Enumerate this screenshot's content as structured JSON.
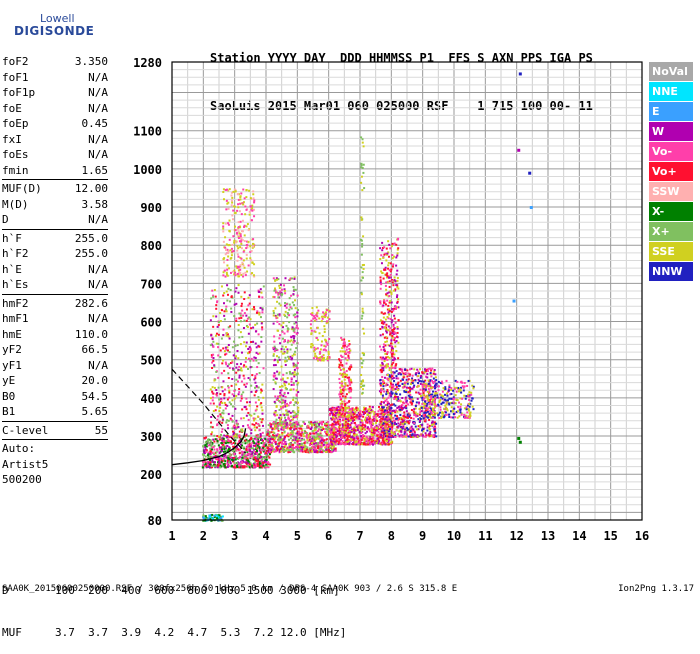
{
  "logo": {
    "top": "Lowell",
    "bottom": "DIGISONDE"
  },
  "header": {
    "line1": "Station YYYY DAY  DDD HHMMSS P1  FFS S AXN PPS IGA PS",
    "line2": "SaoLuis 2015 Mar01 060 025000 RSF    1 715 100 00- 11"
  },
  "params": [
    {
      "k": "foF2",
      "v": "3.350"
    },
    {
      "k": "foF1",
      "v": "N/A"
    },
    {
      "k": "foF1p",
      "v": "N/A"
    },
    {
      "k": "foE",
      "v": "N/A"
    },
    {
      "k": "foEp",
      "v": "0.45"
    },
    {
      "k": "fxI",
      "v": "N/A"
    },
    {
      "k": "foEs",
      "v": "N/A"
    },
    {
      "k": "fmin",
      "v": "1.65"
    },
    {
      "sep": true
    },
    {
      "k": "MUF(D)",
      "v": "12.00"
    },
    {
      "k": "M(D)",
      "v": "3.58"
    },
    {
      "k": "D",
      "v": "N/A"
    },
    {
      "sep": true
    },
    {
      "k": "h`F",
      "v": "255.0"
    },
    {
      "k": "h`F2",
      "v": "255.0"
    },
    {
      "k": "h`E",
      "v": "N/A"
    },
    {
      "k": "h`Es",
      "v": "N/A"
    },
    {
      "sep": true
    },
    {
      "k": "hmF2",
      "v": "282.6"
    },
    {
      "k": "hmF1",
      "v": "N/A"
    },
    {
      "k": "hmE",
      "v": "110.0"
    },
    {
      "k": "yF2",
      "v": "66.5"
    },
    {
      "k": "yF1",
      "v": "N/A"
    },
    {
      "k": "yE",
      "v": "20.0"
    },
    {
      "k": "B0",
      "v": "54.5"
    },
    {
      "k": "B1",
      "v": "5.65"
    },
    {
      "sep": true
    },
    {
      "k": "C-level",
      "v": "55"
    },
    {
      "sep": true
    },
    {
      "text": "Auto:"
    },
    {
      "text": "Artist5"
    },
    {
      "text": "500200"
    }
  ],
  "legend": [
    {
      "label": "NoVal",
      "color": "#a8a8a8"
    },
    {
      "label": "NNE",
      "color": "#00e5ff"
    },
    {
      "label": "E",
      "color": "#3aa0ff"
    },
    {
      "label": "W",
      "color": "#b000b0"
    },
    {
      "label": "Vo-",
      "color": "#ff3faa"
    },
    {
      "label": "Vo+",
      "color": "#ff1030"
    },
    {
      "label": "SSW",
      "color": "#ffb0b0"
    },
    {
      "label": "X-",
      "color": "#008000"
    },
    {
      "label": "X+",
      "color": "#80c060"
    },
    {
      "label": "SSE",
      "color": "#d0d020"
    },
    {
      "label": "NNW",
      "color": "#2020c0"
    }
  ],
  "chart_data": {
    "type": "scatter",
    "xlabel": "",
    "ylabel": "",
    "xlim": [
      1,
      16
    ],
    "ylim": [
      80,
      1280
    ],
    "x_ticks": [
      1,
      2,
      3,
      4,
      5,
      6,
      7,
      8,
      9,
      10,
      11,
      12,
      13,
      14,
      15,
      16
    ],
    "y_ticks": [
      80,
      200,
      300,
      400,
      500,
      600,
      700,
      800,
      900,
      1000,
      1100,
      1280
    ],
    "grid": true,
    "dist_table": {
      "row1_label": "D",
      "distances_km": [
        "100",
        "200",
        "400",
        "600",
        "800",
        "1000",
        "1500",
        "3000"
      ],
      "unit1": "[km]",
      "row2_label": "MUF",
      "muf_mhz": [
        "3.7",
        "3.7",
        "3.9",
        "4.2",
        "4.7",
        "5.3",
        "7.2",
        "12.0"
      ],
      "unit2": "[MHz]"
    },
    "trace_solid": [
      [
        1.0,
        225
      ],
      [
        1.5,
        230
      ],
      [
        2.0,
        236
      ],
      [
        2.5,
        246
      ],
      [
        2.8,
        258
      ],
      [
        3.0,
        270
      ],
      [
        3.2,
        285
      ],
      [
        3.3,
        300
      ],
      [
        3.35,
        320
      ]
    ],
    "trace_dashed": [
      [
        1.0,
        475
      ],
      [
        1.5,
        430
      ],
      [
        2.0,
        385
      ],
      [
        2.5,
        335
      ],
      [
        2.9,
        295
      ],
      [
        3.2,
        270
      ],
      [
        3.35,
        255
      ]
    ],
    "dot_clusters": [
      {
        "x": [
          1.95,
          4.1
        ],
        "y": [
          220,
          300
        ],
        "n": 700,
        "colors": [
          "#008000",
          "#80c060",
          "#ff3faa",
          "#ff1030",
          "#b000b0"
        ]
      },
      {
        "x": [
          4.0,
          6.2
        ],
        "y": [
          260,
          340
        ],
        "n": 700,
        "colors": [
          "#ff3faa",
          "#ff1030",
          "#b000b0",
          "#d0d020",
          "#80c060"
        ]
      },
      {
        "x": [
          6.0,
          8.0
        ],
        "y": [
          280,
          380
        ],
        "n": 900,
        "colors": [
          "#ff1030",
          "#ff3faa",
          "#b000b0",
          "#d0d020"
        ]
      },
      {
        "x": [
          7.6,
          9.4
        ],
        "y": [
          300,
          480
        ],
        "n": 800,
        "colors": [
          "#d0d020",
          "#ff1030",
          "#b000b0",
          "#ff3faa",
          "#2020c0"
        ]
      },
      {
        "x": [
          9.0,
          10.6
        ],
        "y": [
          350,
          450
        ],
        "n": 300,
        "colors": [
          "#d0d020",
          "#ff3faa",
          "#2020c0"
        ]
      },
      {
        "x": [
          2.2,
          3.9
        ],
        "y": [
          300,
          700
        ],
        "n": 500,
        "colors": [
          "#b000b0",
          "#ff3faa",
          "#d0d020",
          "#ff1030",
          "#80c060"
        ]
      },
      {
        "x": [
          2.6,
          3.6
        ],
        "y": [
          720,
          950
        ],
        "n": 250,
        "colors": [
          "#d0d020",
          "#ffb0b0",
          "#ff3faa"
        ]
      },
      {
        "x": [
          4.2,
          5.0
        ],
        "y": [
          330,
          720
        ],
        "n": 400,
        "colors": [
          "#ff3faa",
          "#b000b0",
          "#d0d020",
          "#80c060"
        ]
      },
      {
        "x": [
          5.4,
          6.0
        ],
        "y": [
          500,
          640
        ],
        "n": 120,
        "colors": [
          "#d0d020",
          "#ff3faa"
        ]
      },
      {
        "x": [
          6.3,
          6.7
        ],
        "y": [
          350,
          560
        ],
        "n": 200,
        "colors": [
          "#ff1030",
          "#ff3faa",
          "#d0d020"
        ]
      },
      {
        "x": [
          7.6,
          8.2
        ],
        "y": [
          480,
          820
        ],
        "n": 300,
        "colors": [
          "#d0d020",
          "#ff1030",
          "#b000b0",
          "#ff3faa"
        ]
      },
      {
        "x": [
          1.95,
          2.6
        ],
        "y": [
          80,
          96
        ],
        "n": 80,
        "colors": [
          "#008000",
          "#80c060",
          "#00e5ff",
          "#3aa0ff"
        ]
      },
      {
        "x": [
          7.0,
          7.1
        ],
        "y": [
          400,
          1100
        ],
        "n": 60,
        "colors": [
          "#80c060",
          "#d0d020"
        ]
      }
    ],
    "isolated_points": [
      {
        "x": 12.1,
        "y": 1250,
        "color": "#2020c0"
      },
      {
        "x": 12.05,
        "y": 1050,
        "color": "#b000b0"
      },
      {
        "x": 12.4,
        "y": 990,
        "color": "#2020c0"
      },
      {
        "x": 12.45,
        "y": 900,
        "color": "#3aa0ff"
      },
      {
        "x": 12.05,
        "y": 295,
        "color": "#008000"
      },
      {
        "x": 12.1,
        "y": 285,
        "color": "#008000"
      },
      {
        "x": 11.9,
        "y": 655,
        "color": "#3aa0ff"
      }
    ]
  },
  "footer": {
    "left": "SAA0K_20150600250000.RSF / 300fx256h 50 kHz 5.0 km / DPS-4 SAA0K 903 / 2.6 S 315.8 E",
    "right": "Ion2Png 1.3.17"
  }
}
